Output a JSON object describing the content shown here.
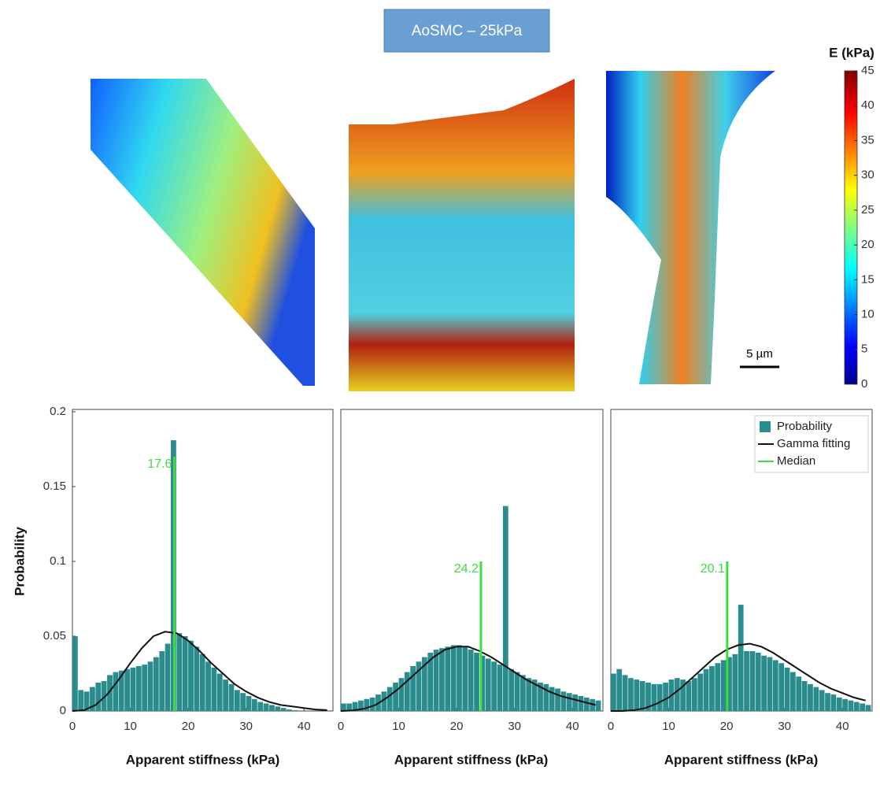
{
  "title": "AoSMC – 25kPa",
  "scale_bar": "5 µm",
  "colorbar": {
    "label": "E (kPa)",
    "clim": [
      0,
      45
    ],
    "ticks": [
      0,
      5,
      10,
      15,
      20,
      25,
      30,
      35,
      40,
      45
    ]
  },
  "chart_data": [
    {
      "type": "histogram",
      "xlabel": "Apparent stiffness (kPa)",
      "ylabel": "Probability",
      "xlim": [
        0,
        45
      ],
      "xticks": [
        0,
        10,
        20,
        30,
        40
      ],
      "ylim": [
        0,
        0.2
      ],
      "yticks": [
        0,
        0.05,
        0.1,
        0.15,
        0.2
      ],
      "series": [
        {
          "type": "histogram",
          "color": "#2a8c8c",
          "bins": [
            0,
            1,
            2,
            3,
            4,
            5,
            6,
            7,
            8,
            9,
            10,
            11,
            12,
            13,
            14,
            15,
            16,
            17,
            18,
            19,
            20,
            21,
            22,
            23,
            24,
            25,
            26,
            27,
            28,
            29,
            30,
            31,
            32,
            33,
            34,
            35,
            36,
            37,
            38,
            39,
            40,
            41,
            42,
            43,
            44,
            45
          ],
          "values": [
            0.05,
            0.014,
            0.013,
            0.016,
            0.019,
            0.02,
            0.024,
            0.026,
            0.027,
            0.028,
            0.029,
            0.03,
            0.031,
            0.033,
            0.036,
            0.04,
            0.045,
            0.181,
            0.052,
            0.05,
            0.047,
            0.043,
            0.038,
            0.033,
            0.029,
            0.025,
            0.021,
            0.018,
            0.014,
            0.012,
            0.01,
            0.008,
            0.006,
            0.005,
            0.004,
            0.003,
            0.002,
            0.001,
            0.0005,
            0,
            0,
            0,
            0,
            0,
            0
          ]
        },
        {
          "type": "line",
          "color": "#111111",
          "x": [
            0,
            2,
            4,
            6,
            8,
            10,
            12,
            14,
            16,
            18,
            20,
            22,
            24,
            26,
            28,
            30,
            32,
            34,
            36,
            38,
            40,
            42,
            44
          ],
          "values": [
            0,
            0.0005,
            0.004,
            0.011,
            0.021,
            0.032,
            0.042,
            0.05,
            0.053,
            0.052,
            0.047,
            0.04,
            0.032,
            0.025,
            0.018,
            0.013,
            0.009,
            0.006,
            0.004,
            0.003,
            0.002,
            0.001,
            0.0006
          ]
        },
        {
          "type": "median",
          "color": "#3ddc3d",
          "x": 17.6,
          "values": [
            0.17
          ]
        }
      ]
    },
    {
      "type": "histogram",
      "xlabel": "Apparent stiffness (kPa)",
      "xlim": [
        0,
        45
      ],
      "xticks": [
        0,
        10,
        20,
        30,
        40
      ],
      "ylim": [
        0,
        0.2
      ],
      "series": [
        {
          "type": "histogram",
          "color": "#2a8c8c",
          "bins": [
            0,
            1,
            2,
            3,
            4,
            5,
            6,
            7,
            8,
            9,
            10,
            11,
            12,
            13,
            14,
            15,
            16,
            17,
            18,
            19,
            20,
            21,
            22,
            23,
            24,
            25,
            26,
            27,
            28,
            29,
            30,
            31,
            32,
            33,
            34,
            35,
            36,
            37,
            38,
            39,
            40,
            41,
            42,
            43,
            44,
            45
          ],
          "values": [
            0.005,
            0.005,
            0.006,
            0.007,
            0.008,
            0.009,
            0.011,
            0.013,
            0.016,
            0.019,
            0.022,
            0.026,
            0.03,
            0.033,
            0.036,
            0.039,
            0.041,
            0.042,
            0.043,
            0.044,
            0.044,
            0.043,
            0.041,
            0.039,
            0.037,
            0.035,
            0.033,
            0.031,
            0.137,
            0.028,
            0.026,
            0.024,
            0.022,
            0.021,
            0.019,
            0.018,
            0.016,
            0.015,
            0.013,
            0.012,
            0.011,
            0.01,
            0.009,
            0.008,
            0.007
          ]
        },
        {
          "type": "line",
          "color": "#111111",
          "x": [
            0,
            2,
            4,
            6,
            8,
            10,
            12,
            14,
            16,
            18,
            20,
            22,
            24,
            26,
            28,
            30,
            32,
            34,
            36,
            38,
            40,
            42,
            44
          ],
          "values": [
            0,
            0.0003,
            0.0015,
            0.004,
            0.009,
            0.015,
            0.022,
            0.029,
            0.036,
            0.041,
            0.043,
            0.043,
            0.04,
            0.036,
            0.031,
            0.026,
            0.021,
            0.017,
            0.013,
            0.01,
            0.008,
            0.006,
            0.004
          ]
        },
        {
          "type": "median",
          "color": "#3ddc3d",
          "x": 24.2,
          "values": [
            0.1
          ]
        }
      ]
    },
    {
      "type": "histogram",
      "xlabel": "Apparent stiffness (kPa)",
      "xlim": [
        0,
        45
      ],
      "xticks": [
        0,
        10,
        20,
        30,
        40
      ],
      "ylim": [
        0,
        0.2
      ],
      "legend": "upper right",
      "series": [
        {
          "type": "histogram",
          "name": "Probability",
          "color": "#2a8c8c",
          "bins": [
            0,
            1,
            2,
            3,
            4,
            5,
            6,
            7,
            8,
            9,
            10,
            11,
            12,
            13,
            14,
            15,
            16,
            17,
            18,
            19,
            20,
            21,
            22,
            23,
            24,
            25,
            26,
            27,
            28,
            29,
            30,
            31,
            32,
            33,
            34,
            35,
            36,
            37,
            38,
            39,
            40,
            41,
            42,
            43,
            44,
            45
          ],
          "values": [
            0.025,
            0.028,
            0.024,
            0.022,
            0.021,
            0.02,
            0.019,
            0.018,
            0.018,
            0.019,
            0.021,
            0.022,
            0.021,
            0.02,
            0.022,
            0.025,
            0.028,
            0.03,
            0.032,
            0.034,
            0.036,
            0.038,
            0.071,
            0.04,
            0.04,
            0.039,
            0.037,
            0.036,
            0.034,
            0.032,
            0.029,
            0.026,
            0.023,
            0.02,
            0.018,
            0.016,
            0.014,
            0.012,
            0.011,
            0.009,
            0.008,
            0.007,
            0.006,
            0.005,
            0.004
          ]
        },
        {
          "type": "line",
          "name": "Gamma fitting",
          "color": "#111111",
          "x": [
            0,
            2,
            4,
            6,
            8,
            10,
            12,
            14,
            16,
            18,
            20,
            22,
            24,
            26,
            28,
            30,
            32,
            34,
            36,
            38,
            40,
            42,
            44
          ],
          "values": [
            0,
            0,
            0.0005,
            0.002,
            0.005,
            0.009,
            0.015,
            0.022,
            0.029,
            0.036,
            0.041,
            0.044,
            0.045,
            0.043,
            0.039,
            0.034,
            0.029,
            0.024,
            0.019,
            0.015,
            0.012,
            0.009,
            0.007
          ]
        },
        {
          "type": "median",
          "name": "Median",
          "color": "#3ddc3d",
          "x": 20.1,
          "values": [
            0.1
          ]
        }
      ]
    }
  ]
}
